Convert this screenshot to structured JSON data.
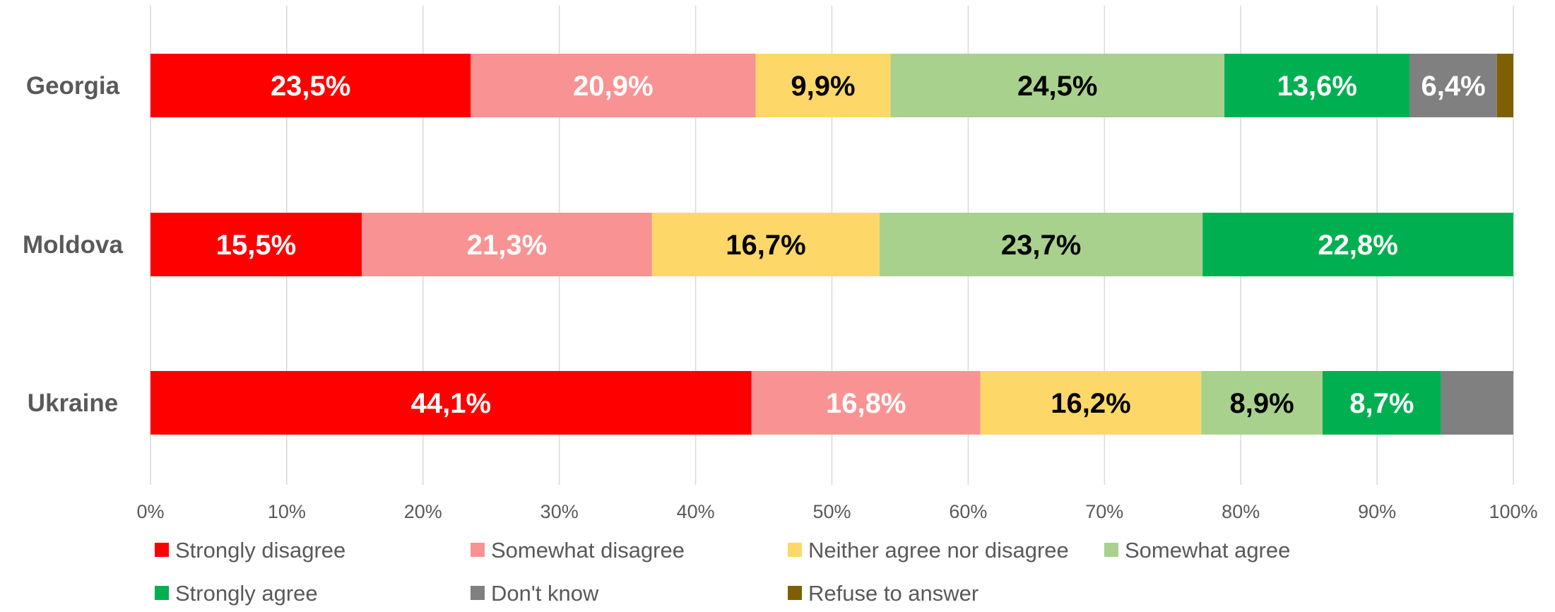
{
  "chart_data": {
    "type": "bar",
    "orientation": "horizontal",
    "stacked": true,
    "categories": [
      "Georgia",
      "Moldova",
      "Ukraine"
    ],
    "series": [
      {
        "name": "Strongly disagree",
        "color": "#FF0000",
        "label_color": "#FFFFFF",
        "values": [
          23.5,
          15.5,
          44.1
        ],
        "labels": [
          "23,5%",
          "15,5%",
          "44,1%"
        ]
      },
      {
        "name": "Somewhat disagree",
        "color": "#F99393",
        "label_color": "#FFFFFF",
        "values": [
          20.9,
          21.3,
          16.8
        ],
        "labels": [
          "20,9%",
          "21,3%",
          "16,8%"
        ]
      },
      {
        "name": "Neither agree nor disagree",
        "color": "#FDD868",
        "label_color": "#000000",
        "values": [
          9.9,
          16.7,
          16.2
        ],
        "labels": [
          "9,9%",
          "16,7%",
          "16,2%"
        ]
      },
      {
        "name": "Somewhat agree",
        "color": "#A9D18E",
        "label_color": "#000000",
        "values": [
          24.5,
          23.7,
          8.9
        ],
        "labels": [
          "24,5%",
          "23,7%",
          "8,9%"
        ]
      },
      {
        "name": "Strongly agree",
        "color": "#00B050",
        "label_color": "#FFFFFF",
        "values": [
          13.6,
          22.8,
          8.7
        ],
        "labels": [
          "13,6%",
          "22,8%",
          "8,7%"
        ]
      },
      {
        "name": "Don't know",
        "color": "#808080",
        "label_color": "#FFFFFF",
        "values": [
          6.4,
          0,
          5.3
        ],
        "labels": [
          "6,4%",
          "",
          ""
        ]
      },
      {
        "name": "Refuse to answer",
        "color": "#7F6000",
        "label_color": "#FFFFFF",
        "values": [
          1.2,
          0,
          0
        ],
        "labels": [
          "",
          "",
          ""
        ]
      }
    ],
    "x_ticks": [
      "0%",
      "10%",
      "20%",
      "30%",
      "40%",
      "50%",
      "60%",
      "70%",
      "80%",
      "90%",
      "100%"
    ],
    "xlim": [
      0,
      100
    ],
    "grid": true,
    "legend_position": "bottom"
  }
}
